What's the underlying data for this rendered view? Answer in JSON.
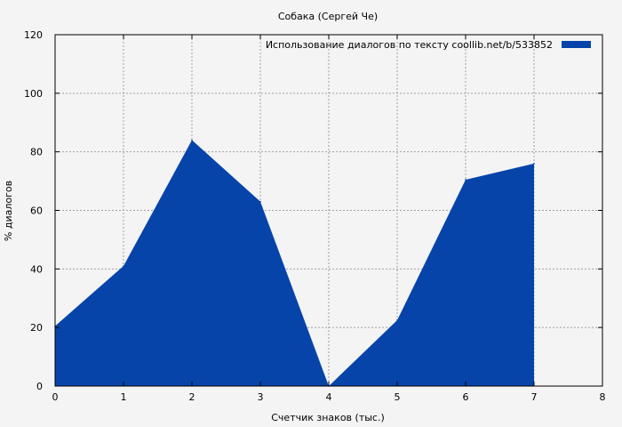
{
  "chart_data": {
    "type": "area",
    "title": "Собака (Сергей Че)",
    "xlabel": "Счетчик знаков (тыс.)",
    "ylabel": "% диалогов",
    "xlim": [
      0,
      8
    ],
    "ylim": [
      0,
      120
    ],
    "xticks": [
      0,
      1,
      2,
      3,
      4,
      5,
      6,
      7,
      8
    ],
    "yticks": [
      0,
      20,
      40,
      60,
      80,
      100,
      120
    ],
    "grid": true,
    "legend_position": "top-right",
    "series": [
      {
        "name": "Использование диалогов по тексту  coollib.net/b/533852",
        "color": "#0644aa",
        "x": [
          0,
          1,
          2,
          3,
          4,
          5,
          6,
          7
        ],
        "values": [
          20.5,
          41,
          84,
          63,
          0,
          22.5,
          70.5,
          76
        ]
      }
    ]
  }
}
